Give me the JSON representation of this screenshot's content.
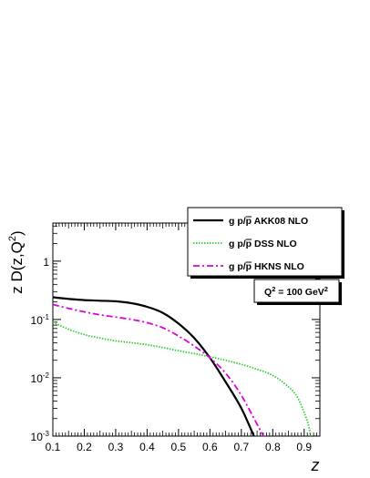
{
  "chart_data": {
    "type": "line",
    "xlabel": "z",
    "ylabel": "z D(z,Q²)",
    "xlim": [
      0.1,
      0.95
    ],
    "ylim": [
      0.001,
      4.5
    ],
    "yscale": "log",
    "x_tick_labels": [
      "0.1",
      "0.2",
      "0.3",
      "0.4",
      "0.5",
      "0.6",
      "0.7",
      "0.8",
      "0.9"
    ],
    "y_tick_labels": [
      {
        "base": "10",
        "exp": "-3",
        "value": 0.001
      },
      {
        "base": "10",
        "exp": "-2",
        "value": 0.01
      },
      {
        "base": "10",
        "exp": "-1",
        "value": 0.1
      },
      {
        "base": "1",
        "exp": "",
        "value": 1
      }
    ],
    "annotation": {
      "prefix": "Q",
      "sup": "2",
      "suffix": " = 100 GeV",
      "sup2": "2"
    },
    "legend_position": "top-right",
    "series": [
      {
        "name": "g p/p̄ AKK08 NLO",
        "label_prefix": "g p/",
        "label_bar": "p",
        "label_suffix": " AKK08 NLO",
        "color": "#000000",
        "style": "solid",
        "x": [
          0.1,
          0.15,
          0.2,
          0.25,
          0.3,
          0.35,
          0.4,
          0.45,
          0.5,
          0.55,
          0.6,
          0.65,
          0.7,
          0.74
        ],
        "y": [
          0.24,
          0.225,
          0.215,
          0.21,
          0.205,
          0.19,
          0.165,
          0.13,
          0.085,
          0.048,
          0.022,
          0.0085,
          0.003,
          0.001
        ]
      },
      {
        "name": "g p/p̄ DSS NLO",
        "label_prefix": "g p/",
        "label_bar": "p",
        "label_suffix": " DSS NLO",
        "color": "#33cc33",
        "style": "dotted",
        "x": [
          0.1,
          0.15,
          0.2,
          0.25,
          0.3,
          0.35,
          0.4,
          0.45,
          0.5,
          0.55,
          0.6,
          0.65,
          0.7,
          0.75,
          0.8,
          0.85,
          0.88,
          0.91,
          0.92
        ],
        "y": [
          0.09,
          0.068,
          0.055,
          0.048,
          0.043,
          0.04,
          0.037,
          0.033,
          0.029,
          0.026,
          0.023,
          0.02,
          0.017,
          0.014,
          0.011,
          0.007,
          0.0045,
          0.0018,
          0.001
        ]
      },
      {
        "name": "g p/p̄ HKNS NLO",
        "label_prefix": "g p/",
        "label_bar": "p",
        "label_suffix": " HKNS NLO",
        "color": "#dd00dd",
        "style": "dashdot",
        "x": [
          0.1,
          0.15,
          0.2,
          0.25,
          0.3,
          0.35,
          0.4,
          0.45,
          0.5,
          0.55,
          0.6,
          0.65,
          0.7,
          0.75,
          0.77
        ],
        "y": [
          0.18,
          0.155,
          0.135,
          0.12,
          0.11,
          0.1,
          0.088,
          0.072,
          0.052,
          0.035,
          0.022,
          0.012,
          0.005,
          0.0016,
          0.001
        ]
      }
    ]
  }
}
